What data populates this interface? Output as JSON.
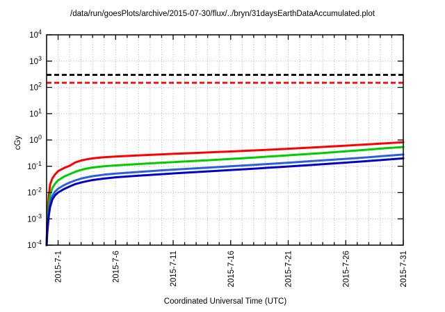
{
  "chart_data": {
    "type": "line",
    "title": "/data/run/goesPlots/archive/2015-07-30/flux/../bryn/31daysEarthDataAccumulated.plot",
    "xlabel": "Coordinated Universal Time (UTC)",
    "ylabel": "cGy",
    "grid": {
      "vertical": "daily, dotted",
      "horizontal": "decades, dotted",
      "color": "#b4b4b4"
    },
    "x_axis": {
      "start": "2015-6-30",
      "end": "2015-7-31",
      "span_days": 31,
      "minor_tick_every_days": 1,
      "ticks": [
        {
          "label": "2015-7-1",
          "day": 1
        },
        {
          "label": "2015-7-6",
          "day": 6
        },
        {
          "label": "2015-7-11",
          "day": 11
        },
        {
          "label": "2015-7-16",
          "day": 16
        },
        {
          "label": "2015-7-21",
          "day": 21
        },
        {
          "label": "2015-7-26",
          "day": 26
        },
        {
          "label": "2015-7-31",
          "day": 31
        }
      ]
    },
    "y_axis": {
      "scale": "log",
      "min": 0.0001,
      "max": 10000,
      "tick_exponents": [
        4,
        3,
        2,
        1,
        0,
        -1,
        -2,
        -3,
        -4
      ],
      "tick_label_base": "10"
    },
    "thresholds": [
      {
        "name": "upper-dose-limit",
        "value": 300,
        "color": "#000000",
        "style": "dashed"
      },
      {
        "name": "lower-dose-limit",
        "value": 150,
        "color": "#ff0000",
        "style": "dashed"
      }
    ],
    "legend": "none",
    "series": [
      {
        "name": "accumulated-dose-red",
        "color": "#ff0000",
        "width": 3,
        "points": [
          [
            0,
            0.0001
          ],
          [
            0.05,
            0.0008
          ],
          [
            0.1,
            0.002
          ],
          [
            0.2,
            0.008
          ],
          [
            0.3,
            0.02
          ],
          [
            0.5,
            0.035
          ],
          [
            0.75,
            0.05
          ],
          [
            1,
            0.065
          ],
          [
            1.5,
            0.085
          ],
          [
            2,
            0.105
          ],
          [
            2.5,
            0.14
          ],
          [
            3,
            0.165
          ],
          [
            3.5,
            0.185
          ],
          [
            4,
            0.2
          ],
          [
            5,
            0.22
          ],
          [
            6,
            0.235
          ],
          [
            8,
            0.26
          ],
          [
            10,
            0.285
          ],
          [
            12,
            0.31
          ],
          [
            14,
            0.335
          ],
          [
            16,
            0.365
          ],
          [
            18,
            0.4
          ],
          [
            20,
            0.44
          ],
          [
            22,
            0.49
          ],
          [
            24,
            0.545
          ],
          [
            26,
            0.61
          ],
          [
            28,
            0.68
          ],
          [
            29.5,
            0.75
          ],
          [
            31,
            0.82
          ]
        ]
      },
      {
        "name": "accumulated-dose-green",
        "color": "#00cc00",
        "width": 3,
        "points": [
          [
            0,
            0.0001
          ],
          [
            0.05,
            0.0004
          ],
          [
            0.1,
            0.001
          ],
          [
            0.2,
            0.0035
          ],
          [
            0.3,
            0.008
          ],
          [
            0.5,
            0.015
          ],
          [
            0.75,
            0.022
          ],
          [
            1,
            0.029
          ],
          [
            1.5,
            0.04
          ],
          [
            2,
            0.05
          ],
          [
            2.5,
            0.062
          ],
          [
            3,
            0.073
          ],
          [
            3.5,
            0.082
          ],
          [
            4,
            0.09
          ],
          [
            5,
            0.1
          ],
          [
            6,
            0.108
          ],
          [
            8,
            0.122
          ],
          [
            10,
            0.137
          ],
          [
            12,
            0.152
          ],
          [
            14,
            0.17
          ],
          [
            16,
            0.19
          ],
          [
            18,
            0.215
          ],
          [
            20,
            0.245
          ],
          [
            22,
            0.28
          ],
          [
            24,
            0.32
          ],
          [
            26,
            0.37
          ],
          [
            28,
            0.43
          ],
          [
            29.5,
            0.49
          ],
          [
            31,
            0.54
          ]
        ]
      },
      {
        "name": "accumulated-dose-blue",
        "color": "#2a5fdf",
        "width": 3,
        "points": [
          [
            0,
            0.0001
          ],
          [
            0.05,
            0.0003
          ],
          [
            0.1,
            0.0007
          ],
          [
            0.2,
            0.002
          ],
          [
            0.3,
            0.004
          ],
          [
            0.5,
            0.0075
          ],
          [
            0.75,
            0.011
          ],
          [
            1,
            0.014
          ],
          [
            1.5,
            0.019
          ],
          [
            2,
            0.024
          ],
          [
            2.5,
            0.029
          ],
          [
            3,
            0.034
          ],
          [
            3.5,
            0.038
          ],
          [
            4,
            0.042
          ],
          [
            5,
            0.048
          ],
          [
            6,
            0.053
          ],
          [
            8,
            0.061
          ],
          [
            10,
            0.07
          ],
          [
            12,
            0.079
          ],
          [
            14,
            0.089
          ],
          [
            16,
            0.1
          ],
          [
            18,
            0.113
          ],
          [
            20,
            0.128
          ],
          [
            22,
            0.146
          ],
          [
            24,
            0.167
          ],
          [
            26,
            0.192
          ],
          [
            28,
            0.222
          ],
          [
            29.5,
            0.25
          ],
          [
            31,
            0.28
          ]
        ]
      },
      {
        "name": "accumulated-dose-darkblue",
        "color": "#0000cc",
        "width": 3,
        "points": [
          [
            0,
            0.0001
          ],
          [
            0.05,
            0.00025
          ],
          [
            0.1,
            0.0005
          ],
          [
            0.2,
            0.0014
          ],
          [
            0.3,
            0.0028
          ],
          [
            0.5,
            0.0055
          ],
          [
            0.75,
            0.008
          ],
          [
            1,
            0.01
          ],
          [
            1.5,
            0.0135
          ],
          [
            2,
            0.017
          ],
          [
            2.5,
            0.021
          ],
          [
            3,
            0.024
          ],
          [
            3.5,
            0.027
          ],
          [
            4,
            0.03
          ],
          [
            5,
            0.034
          ],
          [
            6,
            0.038
          ],
          [
            8,
            0.044
          ],
          [
            10,
            0.05
          ],
          [
            12,
            0.057
          ],
          [
            14,
            0.064
          ],
          [
            16,
            0.072
          ],
          [
            18,
            0.081
          ],
          [
            20,
            0.092
          ],
          [
            22,
            0.105
          ],
          [
            24,
            0.12
          ],
          [
            26,
            0.138
          ],
          [
            28,
            0.159
          ],
          [
            29.5,
            0.178
          ],
          [
            31,
            0.2
          ]
        ]
      }
    ]
  }
}
